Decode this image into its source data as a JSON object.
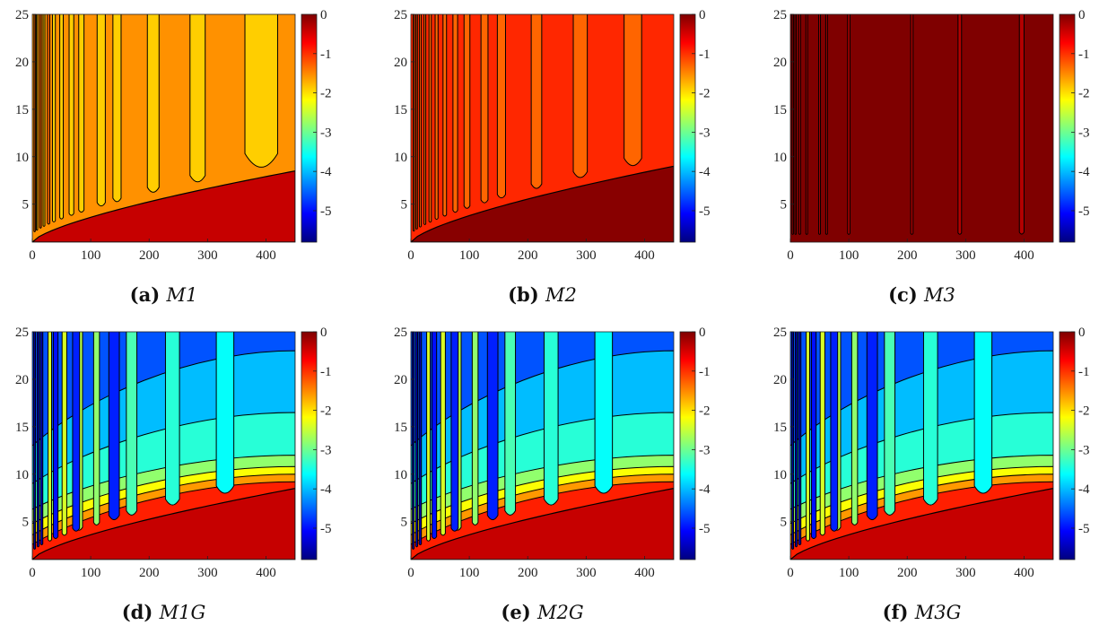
{
  "colormap": [
    "#00007f",
    "#0000ff",
    "#007fff",
    "#00ffff",
    "#7fff7f",
    "#ffff00",
    "#ff7f00",
    "#ff0000",
    "#7f0000"
  ],
  "contour_line_color": "#000000",
  "chart_data": [
    {
      "type": "contour",
      "panel": "a",
      "caption_label": "(a)",
      "caption_name": "M1",
      "xlim": [
        0,
        450
      ],
      "ylim": [
        1,
        25
      ],
      "x_ticks": [
        "0",
        "100",
        "200",
        "300",
        "400"
      ],
      "y_ticks": [
        "5",
        "10",
        "15",
        "20",
        "25"
      ],
      "colorbar_range": [
        -5.8,
        0
      ],
      "colorbar_ticks": [
        "0",
        "-1",
        "-2",
        "-3",
        "-4",
        "-5"
      ],
      "regions": [
        {
          "name": "lower-region",
          "level": -0.4
        },
        {
          "name": "upper-region",
          "level": -1.55
        }
      ],
      "boundary": {
        "start_y": 1,
        "end_y": 8.5
      },
      "fingers": [
        {
          "x": 4,
          "width": 2,
          "level": -1.3
        },
        {
          "x": 8,
          "width": 2,
          "level": -1.9
        },
        {
          "x": 14,
          "width": 3,
          "level": -1.3
        },
        {
          "x": 20,
          "width": 3,
          "level": -1.9
        },
        {
          "x": 28,
          "width": 4,
          "level": -1.3
        },
        {
          "x": 37,
          "width": 5,
          "level": -1.9
        },
        {
          "x": 50,
          "width": 6,
          "level": -1.9
        },
        {
          "x": 67,
          "width": 8,
          "level": -1.9
        },
        {
          "x": 84,
          "width": 9,
          "level": -1.9
        },
        {
          "x": 118,
          "width": 14,
          "level": -1.9
        },
        {
          "x": 145,
          "width": 14,
          "level": -1.9
        },
        {
          "x": 207,
          "width": 20,
          "level": -1.9
        },
        {
          "x": 283,
          "width": 26,
          "level": -1.9
        },
        {
          "x": 392,
          "width": 56,
          "level": -1.9
        }
      ],
      "bands": []
    },
    {
      "type": "contour",
      "panel": "b",
      "caption_label": "(b)",
      "caption_name": "M2",
      "xlim": [
        0,
        450
      ],
      "ylim": [
        1,
        25
      ],
      "x_ticks": [
        "0",
        "100",
        "200",
        "300",
        "400"
      ],
      "y_ticks": [
        "5",
        "10",
        "15",
        "20",
        "25"
      ],
      "colorbar_range": [
        -5.8,
        0
      ],
      "colorbar_ticks": [
        "0",
        "-1",
        "-2",
        "-3",
        "-4",
        "-5"
      ],
      "regions": [
        {
          "name": "lower-region",
          "level": -0.05
        },
        {
          "name": "upper-region",
          "level": -0.95
        }
      ],
      "boundary": {
        "start_y": 1,
        "end_y": 9
      },
      "fingers": [
        {
          "x": 5,
          "width": 2,
          "level": -1.3
        },
        {
          "x": 10,
          "width": 2,
          "level": -1.3
        },
        {
          "x": 16,
          "width": 3,
          "level": -1.3
        },
        {
          "x": 24,
          "width": 3,
          "level": -1.3
        },
        {
          "x": 33,
          "width": 4,
          "level": -1.3
        },
        {
          "x": 44,
          "width": 5,
          "level": -1.3
        },
        {
          "x": 58,
          "width": 6,
          "level": -1.3
        },
        {
          "x": 76,
          "width": 8,
          "level": -1.3
        },
        {
          "x": 96,
          "width": 10,
          "level": -1.3
        },
        {
          "x": 126,
          "width": 12,
          "level": -1.3
        },
        {
          "x": 155,
          "width": 14,
          "level": -1.3
        },
        {
          "x": 215,
          "width": 18,
          "level": -1.3
        },
        {
          "x": 290,
          "width": 24,
          "level": -1.3
        },
        {
          "x": 380,
          "width": 30,
          "level": -1.3
        }
      ],
      "bands": []
    },
    {
      "type": "contour",
      "panel": "c",
      "caption_label": "(c)",
      "caption_name": "M3",
      "xlim": [
        0,
        450
      ],
      "ylim": [
        1,
        25
      ],
      "x_ticks": [
        "0",
        "100",
        "200",
        "300",
        "400"
      ],
      "y_ticks": [
        "5",
        "10",
        "15",
        "20",
        "25"
      ],
      "colorbar_range": [
        -5.8,
        0
      ],
      "colorbar_ticks": [
        "0",
        "-1",
        "-2",
        "-3",
        "-4",
        "-5"
      ],
      "regions": [
        {
          "name": "lower-region",
          "level": 0
        },
        {
          "name": "upper-region",
          "level": 0
        }
      ],
      "boundary": {
        "start_y": 1,
        "end_y": 1
      },
      "fingers": [
        {
          "x": 4,
          "width": 2,
          "level": -0.5
        },
        {
          "x": 9,
          "width": 2,
          "level": -0.5
        },
        {
          "x": 16,
          "width": 3,
          "level": -0.35
        },
        {
          "x": 28,
          "width": 3,
          "level": -0.35
        },
        {
          "x": 50,
          "width": 3,
          "level": -0.3
        },
        {
          "x": 62,
          "width": 3,
          "level": -0.3
        },
        {
          "x": 100,
          "width": 4,
          "level": -0.3
        },
        {
          "x": 208,
          "width": 4,
          "level": -0.3
        },
        {
          "x": 290,
          "width": 6,
          "level": -0.3
        },
        {
          "x": 396,
          "width": 8,
          "level": -0.3
        }
      ],
      "bands": []
    },
    {
      "type": "contour",
      "panel": "d",
      "caption_label": "(d)",
      "caption_name": "M1G",
      "xlim": [
        0,
        450
      ],
      "ylim": [
        1,
        25
      ],
      "x_ticks": [
        "0",
        "100",
        "200",
        "300",
        "400"
      ],
      "y_ticks": [
        "5",
        "10",
        "15",
        "20",
        "25"
      ],
      "colorbar_range": [
        -5.8,
        0
      ],
      "colorbar_ticks": [
        "0",
        "-1",
        "-2",
        "-3",
        "-4",
        "-5"
      ],
      "regions": [
        {
          "name": "lower-region",
          "level": -0.4
        },
        {
          "name": "upper-region",
          "level": -4.6
        }
      ],
      "boundary": {
        "start_y": 1,
        "end_y": 8.5
      },
      "bands": [
        {
          "level": -0.9,
          "start_y": 2.6,
          "end_y": 9.2
        },
        {
          "level": -1.6,
          "start_y": 3.6,
          "end_y": 10
        },
        {
          "level": -2.2,
          "start_y": 4.8,
          "end_y": 10.8
        },
        {
          "level": -2.8,
          "start_y": 6.3,
          "end_y": 12
        },
        {
          "level": -3.4,
          "start_y": 9,
          "end_y": 16.5
        },
        {
          "level": -4,
          "start_y": 13,
          "end_y": 23
        }
      ],
      "fingers": [
        {
          "x": 4,
          "width": 3,
          "level": -5.5
        },
        {
          "x": 10,
          "width": 3,
          "level": -5.3
        },
        {
          "x": 16,
          "width": 4,
          "level": -5.5
        },
        {
          "x": 30,
          "width": 6,
          "level": -2.4
        },
        {
          "x": 55,
          "width": 8,
          "level": -2.4
        },
        {
          "x": 80,
          "width": 12,
          "level": -2.6
        },
        {
          "x": 110,
          "width": 10,
          "level": -2.8
        },
        {
          "x": 140,
          "width": 16,
          "level": -2.9
        },
        {
          "x": 170,
          "width": 18,
          "level": -3.2
        },
        {
          "x": 240,
          "width": 24,
          "level": -3.4
        },
        {
          "x": 330,
          "width": 30,
          "level": -3.6
        },
        {
          "x": 40,
          "width": 8,
          "level": -5
        },
        {
          "x": 75,
          "width": 12,
          "level": -4.9
        },
        {
          "x": 140,
          "width": 18,
          "level": -4.9
        }
      ]
    },
    {
      "type": "contour",
      "panel": "e",
      "caption_label": "(e)",
      "caption_name": "M2G",
      "xlim": [
        0,
        450
      ],
      "ylim": [
        1,
        25
      ],
      "x_ticks": [
        "0",
        "100",
        "200",
        "300",
        "400"
      ],
      "y_ticks": [
        "5",
        "10",
        "15",
        "20",
        "25"
      ],
      "colorbar_range": [
        -5.8,
        0
      ],
      "colorbar_ticks": [
        "0",
        "-1",
        "-2",
        "-3",
        "-4",
        "-5"
      ],
      "regions": [
        {
          "name": "lower-region",
          "level": -0.4
        },
        {
          "name": "upper-region",
          "level": -4.6
        }
      ],
      "boundary": {
        "start_y": 1,
        "end_y": 8.5
      },
      "bands": [
        {
          "level": -0.9,
          "start_y": 2.6,
          "end_y": 9.2
        },
        {
          "level": -1.6,
          "start_y": 3.6,
          "end_y": 10
        },
        {
          "level": -2.2,
          "start_y": 4.8,
          "end_y": 10.8
        },
        {
          "level": -2.8,
          "start_y": 6.3,
          "end_y": 12
        },
        {
          "level": -3.4,
          "start_y": 9,
          "end_y": 16.5
        },
        {
          "level": -4,
          "start_y": 13,
          "end_y": 23
        }
      ],
      "fingers": [
        {
          "x": 4,
          "width": 3,
          "level": -5.5
        },
        {
          "x": 10,
          "width": 3,
          "level": -5.3
        },
        {
          "x": 16,
          "width": 4,
          "level": -5.5
        },
        {
          "x": 30,
          "width": 6,
          "level": -2.4
        },
        {
          "x": 55,
          "width": 8,
          "level": -2.4
        },
        {
          "x": 80,
          "width": 12,
          "level": -2.6
        },
        {
          "x": 110,
          "width": 10,
          "level": -2.8
        },
        {
          "x": 140,
          "width": 16,
          "level": -2.9
        },
        {
          "x": 170,
          "width": 18,
          "level": -3.2
        },
        {
          "x": 240,
          "width": 24,
          "level": -3.4
        },
        {
          "x": 330,
          "width": 30,
          "level": -3.6
        },
        {
          "x": 40,
          "width": 8,
          "level": -5
        },
        {
          "x": 75,
          "width": 12,
          "level": -4.9
        },
        {
          "x": 140,
          "width": 18,
          "level": -4.9
        }
      ]
    },
    {
      "type": "contour",
      "panel": "f",
      "caption_label": "(f)",
      "caption_name": "M3G",
      "xlim": [
        0,
        450
      ],
      "ylim": [
        1,
        25
      ],
      "x_ticks": [
        "0",
        "100",
        "200",
        "300",
        "400"
      ],
      "y_ticks": [
        "5",
        "10",
        "15",
        "20",
        "25"
      ],
      "colorbar_range": [
        -5.8,
        0
      ],
      "colorbar_ticks": [
        "0",
        "-1",
        "-2",
        "-3",
        "-4",
        "-5"
      ],
      "regions": [
        {
          "name": "lower-region",
          "level": -0.4
        },
        {
          "name": "upper-region",
          "level": -4.6
        }
      ],
      "boundary": {
        "start_y": 1,
        "end_y": 8.5
      },
      "bands": [
        {
          "level": -0.9,
          "start_y": 2.6,
          "end_y": 9.2
        },
        {
          "level": -1.6,
          "start_y": 3.6,
          "end_y": 10
        },
        {
          "level": -2.2,
          "start_y": 4.8,
          "end_y": 10.8
        },
        {
          "level": -2.8,
          "start_y": 6.3,
          "end_y": 12
        },
        {
          "level": -3.4,
          "start_y": 9,
          "end_y": 16.5
        },
        {
          "level": -4,
          "start_y": 13,
          "end_y": 23
        }
      ],
      "fingers": [
        {
          "x": 4,
          "width": 3,
          "level": -5.5
        },
        {
          "x": 10,
          "width": 3,
          "level": -5.3
        },
        {
          "x": 16,
          "width": 4,
          "level": -5.5
        },
        {
          "x": 30,
          "width": 6,
          "level": -2.4
        },
        {
          "x": 55,
          "width": 8,
          "level": -2.4
        },
        {
          "x": 80,
          "width": 12,
          "level": -2.6
        },
        {
          "x": 110,
          "width": 10,
          "level": -2.8
        },
        {
          "x": 140,
          "width": 16,
          "level": -2.9
        },
        {
          "x": 170,
          "width": 18,
          "level": -3.2
        },
        {
          "x": 240,
          "width": 24,
          "level": -3.4
        },
        {
          "x": 330,
          "width": 30,
          "level": -3.6
        },
        {
          "x": 40,
          "width": 8,
          "level": -5
        },
        {
          "x": 75,
          "width": 12,
          "level": -4.9
        },
        {
          "x": 140,
          "width": 18,
          "level": -4.9
        }
      ]
    }
  ]
}
